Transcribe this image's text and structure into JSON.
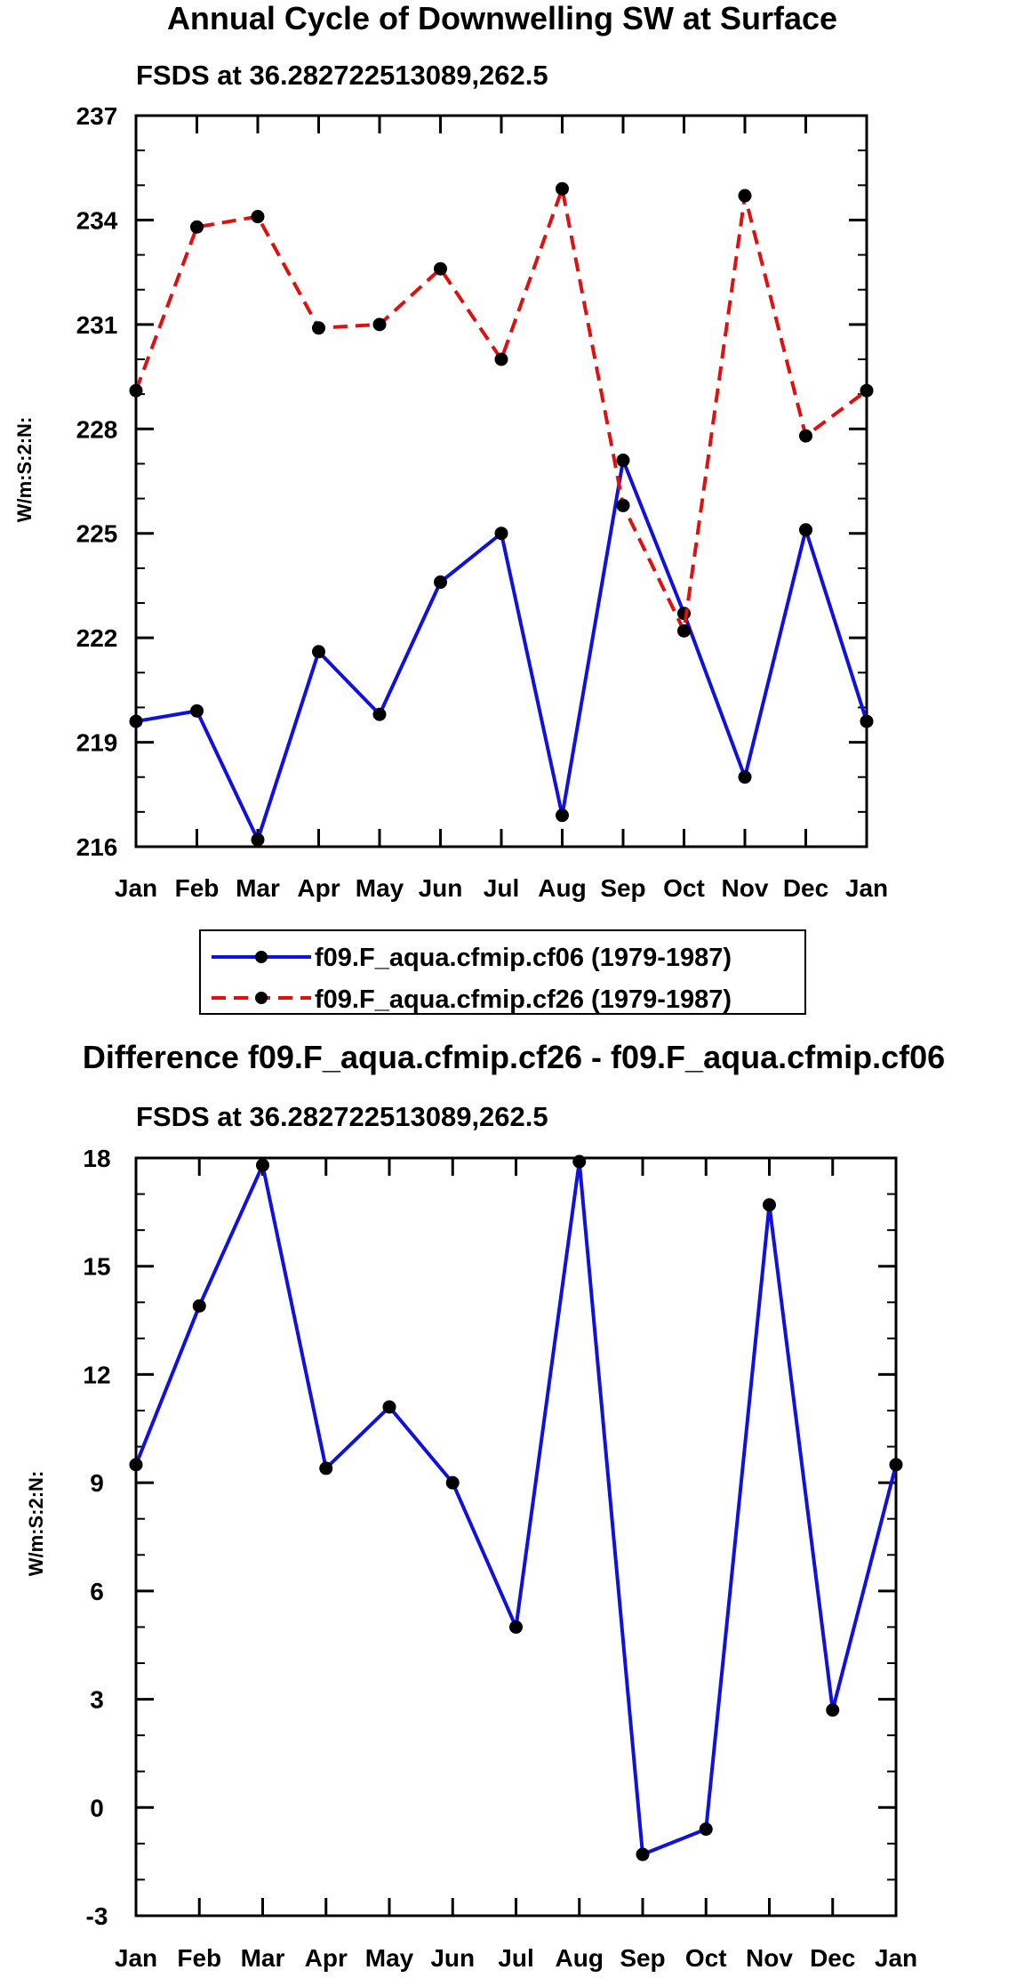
{
  "chart_data": [
    {
      "type": "line",
      "title": "Annual Cycle of Downwelling SW at Surface",
      "subtitle": "FSDS at 36.282722513089,262.5",
      "ylabel": "W/m:S:2:N:",
      "xlabel": "",
      "ylim": [
        216,
        237
      ],
      "yticks": [
        216,
        219,
        222,
        225,
        228,
        231,
        234,
        237
      ],
      "categories": [
        "Jan",
        "Feb",
        "Mar",
        "Apr",
        "May",
        "Jun",
        "Jul",
        "Aug",
        "Sep",
        "Oct",
        "Nov",
        "Dec",
        "Jan"
      ],
      "series": [
        {
          "name": "f09.F_aqua.cfmip.cf06 (1979-1987)",
          "color": "#1010e0",
          "dashed": false,
          "values": [
            219.6,
            219.9,
            216.2,
            221.6,
            219.8,
            223.6,
            225.0,
            216.9,
            227.1,
            222.7,
            218.0,
            225.1,
            219.6
          ]
        },
        {
          "name": "f09.F_aqua.cfmip.cf26 (1979-1987)",
          "color": "#e01010",
          "dashed": true,
          "values": [
            229.1,
            233.8,
            234.1,
            230.9,
            231.0,
            232.6,
            230.0,
            234.9,
            225.8,
            222.2,
            234.7,
            227.8,
            229.1
          ]
        }
      ]
    },
    {
      "type": "line",
      "title": "Difference f09.F_aqua.cfmip.cf26 - f09.F_aqua.cfmip.cf06",
      "subtitle": "FSDS at 36.282722513089,262.5",
      "ylabel": "W/m:S:2:N:",
      "xlabel": "",
      "ylim": [
        -3,
        18
      ],
      "yticks": [
        -3,
        0,
        3,
        6,
        9,
        12,
        15,
        18
      ],
      "categories": [
        "Jan",
        "Feb",
        "Mar",
        "Apr",
        "May",
        "Jun",
        "Jul",
        "Aug",
        "Sep",
        "Oct",
        "Nov",
        "Dec",
        "Jan"
      ],
      "series": [
        {
          "name": "difference",
          "color": "#1010e0",
          "dashed": false,
          "values": [
            9.5,
            13.9,
            17.8,
            9.4,
            11.1,
            9.0,
            5.0,
            17.9,
            -1.3,
            -0.6,
            16.7,
            2.7,
            9.5
          ]
        }
      ]
    }
  ]
}
